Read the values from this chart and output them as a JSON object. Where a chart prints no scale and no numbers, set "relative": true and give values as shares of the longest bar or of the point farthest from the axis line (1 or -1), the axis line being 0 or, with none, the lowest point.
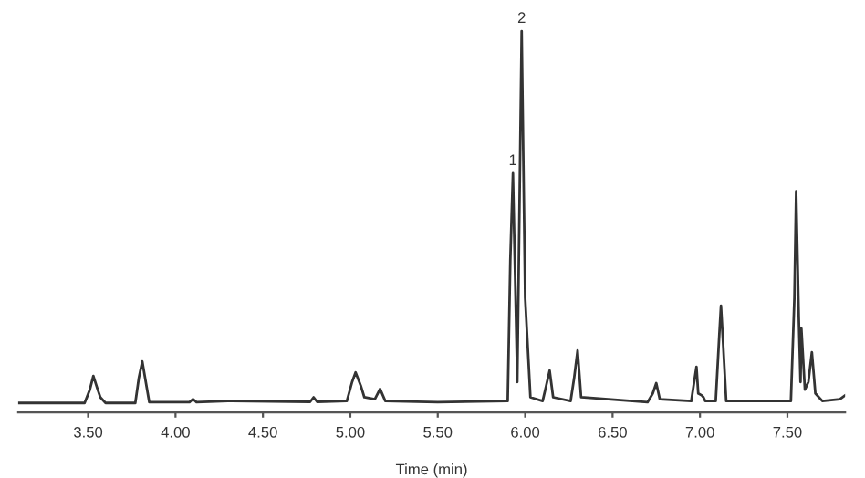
{
  "chart_data": {
    "type": "line",
    "relative": true,
    "xlabel": "Time (min)",
    "xlim": [
      3.1,
      7.83
    ],
    "xticks": [
      {
        "value": 3.5,
        "label": "3.50"
      },
      {
        "value": 4.0,
        "label": "4.00"
      },
      {
        "value": 4.5,
        "label": "4.50"
      },
      {
        "value": 5.0,
        "label": "5.00"
      },
      {
        "value": 5.5,
        "label": "5.50"
      },
      {
        "value": 6.0,
        "label": "6.00"
      },
      {
        "value": 6.5,
        "label": "6.50"
      },
      {
        "value": 7.0,
        "label": "7.00"
      },
      {
        "value": 7.5,
        "label": "7.50"
      }
    ],
    "annotations": [
      {
        "text": "1",
        "x": 5.93,
        "y": 0.627
      },
      {
        "text": "2",
        "x": 5.98,
        "y": 1
      }
    ],
    "grid": false,
    "legend": false,
    "marker": "none",
    "line_style": "solid",
    "series": [
      {
        "color": "#333333",
        "x": [
          3.1,
          3.48,
          3.51,
          3.53,
          3.555,
          3.57,
          3.6,
          3.77,
          3.79,
          3.81,
          3.83,
          3.85,
          4.08,
          4.1,
          4.12,
          4.3,
          4.77,
          4.79,
          4.81,
          4.98,
          5.01,
          5.03,
          5.06,
          5.08,
          5.14,
          5.17,
          5.2,
          5.5,
          5.9,
          5.915,
          5.93,
          5.945,
          5.955,
          5.98,
          6.0,
          6.03,
          6.1,
          6.12,
          6.14,
          6.16,
          6.26,
          6.28,
          6.3,
          6.32,
          6.7,
          6.73,
          6.75,
          6.77,
          6.95,
          6.97,
          6.98,
          6.99,
          7.01,
          7.02,
          7.03,
          7.09,
          7.11,
          7.12,
          7.13,
          7.15,
          7.52,
          7.54,
          7.55,
          7.565,
          7.575,
          7.58,
          7.6,
          7.62,
          7.64,
          7.66,
          7.7,
          7.8,
          7.83
        ],
        "values": [
          0.025,
          0.025,
          0.06,
          0.096,
          0.06,
          0.04,
          0.025,
          0.025,
          0.09,
          0.134,
          0.08,
          0.027,
          0.027,
          0.035,
          0.027,
          0.03,
          0.028,
          0.04,
          0.028,
          0.03,
          0.08,
          0.105,
          0.07,
          0.04,
          0.035,
          0.062,
          0.03,
          0.027,
          0.03,
          0.4,
          0.627,
          0.3,
          0.08,
          1,
          0.3,
          0.04,
          0.03,
          0.07,
          0.11,
          0.04,
          0.03,
          0.09,
          0.163,
          0.04,
          0.027,
          0.05,
          0.077,
          0.035,
          0.03,
          0.09,
          0.12,
          0.05,
          0.045,
          0.04,
          0.03,
          0.03,
          0.2,
          0.28,
          0.2,
          0.03,
          0.03,
          0.3,
          0.58,
          0.25,
          0.08,
          0.22,
          0.06,
          0.08,
          0.158,
          0.05,
          0.03,
          0.035,
          0.045
        ]
      }
    ]
  }
}
